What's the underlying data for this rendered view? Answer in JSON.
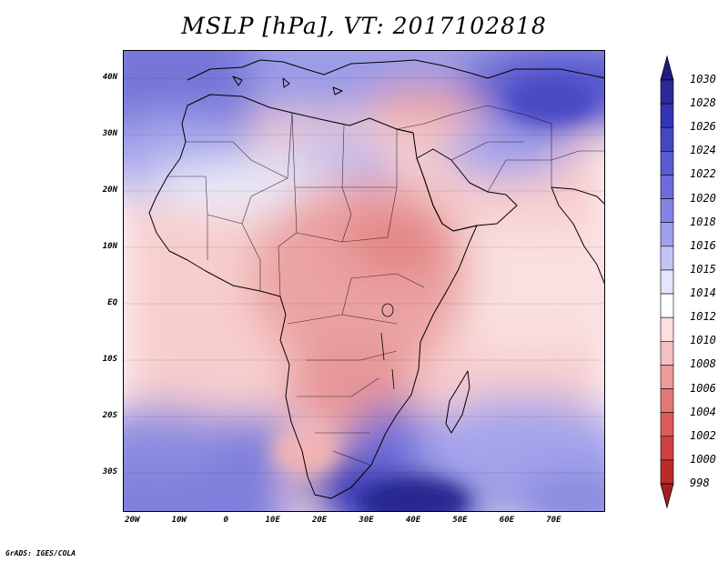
{
  "title": "MSLP [hPa], VT: 2017102818",
  "credit": "GrADS: IGES/COLA",
  "axes": {
    "lat_labels": [
      {
        "text": "40N",
        "lat": 40
      },
      {
        "text": "30N",
        "lat": 30
      },
      {
        "text": "20N",
        "lat": 20
      },
      {
        "text": "10N",
        "lat": 10
      },
      {
        "text": "EQ",
        "lat": 0
      },
      {
        "text": "10S",
        "lat": -10
      },
      {
        "text": "20S",
        "lat": -20
      },
      {
        "text": "30S",
        "lat": -30
      }
    ],
    "lon_labels": [
      {
        "text": "20W",
        "lon": -20
      },
      {
        "text": "10W",
        "lon": -10
      },
      {
        "text": "0",
        "lon": 0
      },
      {
        "text": "10E",
        "lon": 10
      },
      {
        "text": "20E",
        "lon": 20
      },
      {
        "text": "30E",
        "lon": 30
      },
      {
        "text": "40E",
        "lon": 40
      },
      {
        "text": "50E",
        "lon": 50
      },
      {
        "text": "60E",
        "lon": 60
      },
      {
        "text": "70E",
        "lon": 70
      }
    ],
    "lon_range": [
      -22,
      81
    ],
    "lat_range": [
      -37,
      45
    ]
  },
  "colorbar": {
    "levels": [
      "1030",
      "1028",
      "1026",
      "1024",
      "1022",
      "1020",
      "1018",
      "1016",
      "1015",
      "1014",
      "1012",
      "1010",
      "1008",
      "1006",
      "1004",
      "1002",
      "1000",
      "998"
    ],
    "colors": [
      "#2a2a9a",
      "#3434b4",
      "#4646c4",
      "#5a5ad0",
      "#6c6cdc",
      "#8484e4",
      "#a0a0ec",
      "#c4c4f4",
      "#e4e4fa",
      "#ffffff",
      "#fbdede",
      "#f6c0c0",
      "#ee9a9a",
      "#e47878",
      "#dc5a5a",
      "#d04040",
      "#bc2a2a"
    ],
    "top_color": "#1e1e80",
    "bottom_color": "#a81e1e"
  }
}
